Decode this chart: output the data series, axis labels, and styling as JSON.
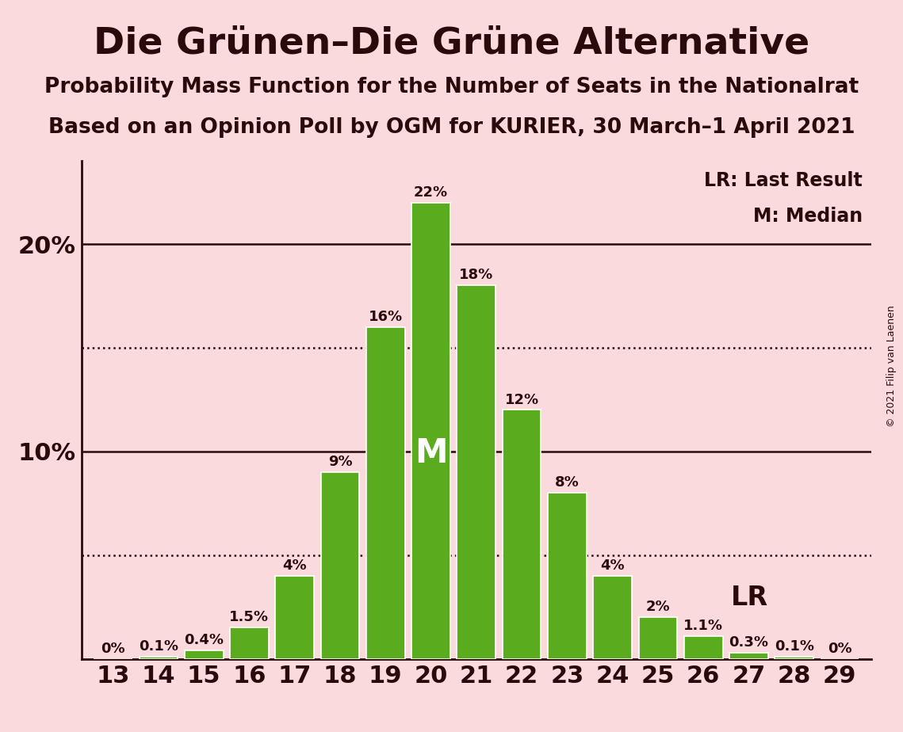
{
  "seats": [
    13,
    14,
    15,
    16,
    17,
    18,
    19,
    20,
    21,
    22,
    23,
    24,
    25,
    26,
    27,
    28,
    29
  ],
  "probabilities": [
    0.0,
    0.1,
    0.4,
    1.5,
    4.0,
    9.0,
    16.0,
    22.0,
    18.0,
    12.0,
    8.0,
    4.0,
    2.0,
    1.1,
    0.3,
    0.1,
    0.0
  ],
  "bar_color": "#5aab1e",
  "bar_edge_color": "#ffffff",
  "background_color": "#fadadd",
  "title": "Die Grünen–Die Grüne Alternative",
  "subtitle1": "Probability Mass Function for the Number of Seats in the Nationalrat",
  "subtitle2": "Based on an Opinion Poll by OGM for KURIER, 30 March–1 April 2021",
  "copyright": "© 2021 Filip van Laenen",
  "median_seat": 20,
  "lr_seat": 26,
  "ylim": [
    0,
    24
  ],
  "dotted_lines": [
    5,
    15
  ],
  "solid_lines": [
    10,
    20
  ],
  "bar_label_fontsize": 13,
  "title_fontsize": 34,
  "subtitle_fontsize": 19,
  "axis_tick_fontsize": 22,
  "median_label_color": "#ffffff",
  "text_color": "#2a0a0a"
}
